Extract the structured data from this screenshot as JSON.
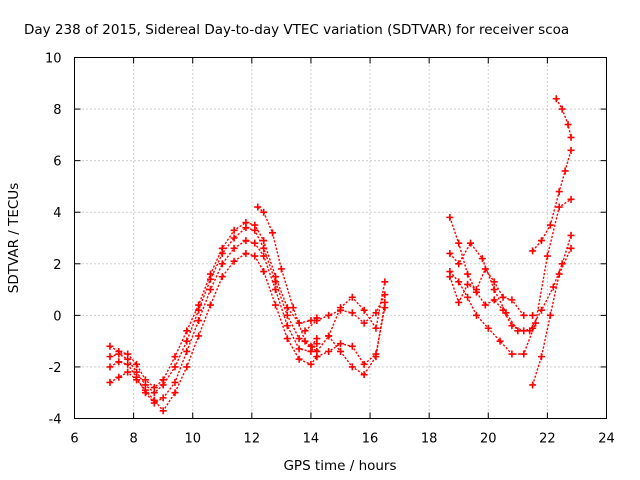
{
  "chart_data": {
    "type": "scatter",
    "title": "Day 238 of 2015, Sidereal Day-to-day VTEC variation (SDTVAR) for receiver scoa",
    "xlabel": "GPS time / hours",
    "ylabel": "SDTVAR / TECUs",
    "xlim": [
      6,
      24
    ],
    "ylim": [
      -4,
      10
    ],
    "xticks": [
      "6",
      "8",
      "10",
      "12",
      "14",
      "16",
      "18",
      "20",
      "22",
      "24"
    ],
    "yticks": [
      "-4",
      "-2",
      "0",
      "2",
      "4",
      "6",
      "8",
      "10"
    ],
    "grid": true,
    "marker": "plus",
    "color": "#ff0000",
    "series": [
      {
        "name": "track-1",
        "x": [
          7.2,
          7.5,
          7.8,
          8.1,
          8.4,
          8.7,
          9.0,
          9.4,
          9.8,
          10.2,
          10.6,
          11.0,
          11.4,
          11.8,
          12.1,
          12.4,
          12.8,
          13.2,
          13.6,
          14.0,
          14.2
        ],
        "y": [
          -2.6,
          -2.4,
          -2.2,
          -2.5,
          -2.9,
          -3.3,
          -3.7,
          -3.0,
          -2.0,
          -0.8,
          0.4,
          1.5,
          2.1,
          2.4,
          2.3,
          1.7,
          0.4,
          -0.9,
          -1.7,
          -1.9,
          -1.6
        ]
      },
      {
        "name": "track-2",
        "x": [
          7.2,
          7.5,
          7.8,
          8.1,
          8.4,
          8.7,
          9.0,
          9.4,
          9.8,
          10.2,
          10.6,
          11.0,
          11.4,
          11.8,
          12.1,
          12.4,
          12.8,
          13.2,
          13.6,
          14.0,
          14.2
        ],
        "y": [
          -2.0,
          -1.8,
          -1.9,
          -2.4,
          -3.0,
          -3.4,
          -3.2,
          -2.6,
          -1.4,
          -0.2,
          1.0,
          2.0,
          2.6,
          2.9,
          2.8,
          2.3,
          1.0,
          -0.4,
          -1.3,
          -1.4,
          -1.1
        ]
      },
      {
        "name": "track-3",
        "x": [
          7.2,
          7.5,
          7.8,
          8.1,
          8.4,
          8.7,
          9.0,
          9.4,
          9.8,
          10.2,
          10.6,
          11.0,
          11.4,
          11.8,
          12.1,
          12.4,
          12.8,
          13.2,
          13.6,
          14.0,
          14.2
        ],
        "y": [
          -1.6,
          -1.5,
          -1.7,
          -2.2,
          -2.7,
          -3.0,
          -2.7,
          -2.0,
          -1.0,
          0.2,
          1.4,
          2.4,
          3.0,
          3.4,
          3.3,
          2.6,
          1.3,
          0.0,
          -0.9,
          -1.2,
          -0.9
        ]
      },
      {
        "name": "track-4",
        "x": [
          7.2,
          7.5,
          7.8,
          8.1,
          8.4,
          8.7,
          9.0,
          9.4,
          9.8,
          10.2,
          10.6,
          11.0,
          11.4,
          11.8,
          12.1,
          12.4,
          12.8,
          13.2,
          13.6,
          14.0,
          14.2
        ],
        "y": [
          -1.2,
          -1.4,
          -1.5,
          -1.9,
          -2.5,
          -2.8,
          -2.5,
          -1.6,
          -0.6,
          0.4,
          1.6,
          2.6,
          3.3,
          3.6,
          3.5,
          2.9,
          1.5,
          0.3,
          -0.3,
          -0.2,
          -0.1
        ]
      },
      {
        "name": "track-5",
        "x": [
          12.2,
          12.4,
          12.7,
          13.0,
          13.4,
          13.8,
          14.2,
          14.6,
          15.0,
          15.4,
          15.8,
          16.2,
          16.5
        ],
        "y": [
          4.2,
          4.0,
          3.2,
          1.8,
          0.3,
          -1.0,
          -1.4,
          -0.8,
          0.3,
          0.7,
          0.2,
          -0.5,
          1.3
        ]
      },
      {
        "name": "track-6",
        "x": [
          13.8,
          14.2,
          14.6,
          15.0,
          15.4,
          15.8,
          16.2,
          16.5
        ],
        "y": [
          -0.6,
          -0.2,
          0.0,
          0.2,
          0.1,
          -0.3,
          0.1,
          0.8
        ]
      },
      {
        "name": "track-7",
        "x": [
          14.2,
          14.6,
          15.0,
          15.4,
          15.8,
          16.2,
          16.5
        ],
        "y": [
          -1.6,
          -1.4,
          -1.1,
          -1.2,
          -1.9,
          -1.5,
          0.3
        ]
      },
      {
        "name": "track-8",
        "x": [
          14.6,
          15.0,
          15.4,
          15.8,
          16.2,
          16.5
        ],
        "y": [
          -0.8,
          -1.4,
          -2.0,
          -2.3,
          -1.6,
          0.5
        ]
      },
      {
        "name": "track-9",
        "x": [
          18.7,
          19.0,
          19.3,
          19.6,
          19.9,
          20.2,
          20.5,
          20.8,
          21.2,
          21.5
        ],
        "y": [
          3.8,
          2.8,
          1.6,
          0.9,
          0.4,
          0.6,
          0.2,
          -0.4,
          -0.6,
          -0.5
        ]
      },
      {
        "name": "track-10",
        "x": [
          18.7,
          19.0,
          19.3,
          19.6,
          20.0,
          20.4,
          20.8,
          21.2,
          21.6,
          22.0,
          22.4,
          22.8
        ],
        "y": [
          1.7,
          1.3,
          0.7,
          0.0,
          -0.5,
          -1.0,
          -1.5,
          -1.5,
          -0.3,
          2.3,
          4.2,
          4.5
        ]
      },
      {
        "name": "track-11",
        "x": [
          18.7,
          19.0,
          19.4,
          19.8,
          20.2,
          20.6,
          21.0,
          21.4,
          21.8,
          22.2,
          22.5,
          22.8
        ],
        "y": [
          2.4,
          2.0,
          2.8,
          2.2,
          1.0,
          0.1,
          -0.6,
          -0.6,
          0.2,
          1.1,
          2.0,
          3.1
        ]
      },
      {
        "name": "track-12",
        "x": [
          18.7,
          19.0,
          19.3,
          19.6,
          19.9,
          20.2,
          20.5,
          20.8,
          21.2,
          21.5
        ],
        "y": [
          1.5,
          0.5,
          1.2,
          1.0,
          1.8,
          1.3,
          0.7,
          0.6,
          0.0,
          0.0
        ]
      },
      {
        "name": "track-13",
        "x": [
          21.5,
          21.8,
          22.1,
          22.4,
          22.8
        ],
        "y": [
          -2.7,
          -1.6,
          0.0,
          1.6,
          2.6
        ]
      },
      {
        "name": "track-14",
        "x": [
          21.5,
          21.8,
          22.1,
          22.4,
          22.6,
          22.8
        ],
        "y": [
          2.5,
          2.9,
          3.5,
          4.8,
          5.6,
          6.4
        ]
      },
      {
        "name": "track-15",
        "x": [
          22.3,
          22.5,
          22.7,
          22.8
        ],
        "y": [
          8.4,
          8.0,
          7.4,
          6.9
        ]
      }
    ]
  }
}
